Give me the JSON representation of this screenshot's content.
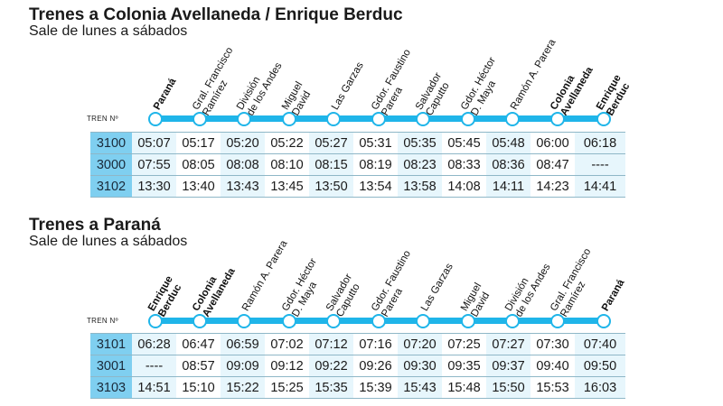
{
  "sections": [
    {
      "title": "Trenes a Colonia Avellaneda / Enrique Berduc",
      "subtitle": "Sale de lunes a sábados",
      "tren_label": "TREN Nº",
      "stations": [
        {
          "lines": [
            "Paraná"
          ],
          "bold": true
        },
        {
          "lines": [
            "Gral. Francisco",
            "Ramírez"
          ],
          "bold": false
        },
        {
          "lines": [
            "División",
            "de los Andes"
          ],
          "bold": false
        },
        {
          "lines": [
            "Miguel",
            "David"
          ],
          "bold": false
        },
        {
          "lines": [
            "Las Garzas"
          ],
          "bold": false
        },
        {
          "lines": [
            "Gdor. Faustino",
            "Parera"
          ],
          "bold": false
        },
        {
          "lines": [
            "Salvador",
            "Caputto"
          ],
          "bold": false
        },
        {
          "lines": [
            "Gdor. Héctor",
            "D. Maya"
          ],
          "bold": false
        },
        {
          "lines": [
            "Ramón A. Parera"
          ],
          "bold": false
        },
        {
          "lines": [
            "Colonia",
            "Avellaneda"
          ],
          "bold": true
        },
        {
          "lines": [
            "Enrique",
            "Berduc"
          ],
          "bold": true
        }
      ],
      "rows": [
        {
          "train": "3100",
          "times": [
            "05:07",
            "05:17",
            "05:20",
            "05:22",
            "05:27",
            "05:31",
            "05:35",
            "05:45",
            "05:48",
            "06:00",
            "06:18"
          ]
        },
        {
          "train": "3000",
          "times": [
            "07:55",
            "08:05",
            "08:08",
            "08:10",
            "08:15",
            "08:19",
            "08:23",
            "08:33",
            "08:36",
            "08:47",
            "----"
          ]
        },
        {
          "train": "3102",
          "times": [
            "13:30",
            "13:40",
            "13:43",
            "13:45",
            "13:50",
            "13:54",
            "13:58",
            "14:08",
            "14:11",
            "14:23",
            "14:41"
          ]
        }
      ]
    },
    {
      "title": "Trenes a Paraná",
      "subtitle": "Sale de lunes a sábados",
      "tren_label": "TREN Nº",
      "stations": [
        {
          "lines": [
            "Enrique",
            "Berduc"
          ],
          "bold": true
        },
        {
          "lines": [
            "Colonia",
            "Avellaneda"
          ],
          "bold": true
        },
        {
          "lines": [
            "Ramón A. Parera"
          ],
          "bold": false
        },
        {
          "lines": [
            "Gdor. Héctor",
            "D. Maya"
          ],
          "bold": false
        },
        {
          "lines": [
            "Salvador",
            "Caputto"
          ],
          "bold": false
        },
        {
          "lines": [
            "Gdor. Faustino",
            "Parera"
          ],
          "bold": false
        },
        {
          "lines": [
            "Las Garzas"
          ],
          "bold": false
        },
        {
          "lines": [
            "Miguel",
            "David"
          ],
          "bold": false
        },
        {
          "lines": [
            "División",
            "de los Andes"
          ],
          "bold": false
        },
        {
          "lines": [
            "Gral. Francisco",
            "Ramírez"
          ],
          "bold": false
        },
        {
          "lines": [
            "Paraná"
          ],
          "bold": true
        }
      ],
      "rows": [
        {
          "train": "3101",
          "times": [
            "06:28",
            "06:47",
            "06:59",
            "07:02",
            "07:12",
            "07:16",
            "07:20",
            "07:25",
            "07:27",
            "07:30",
            "07:40"
          ]
        },
        {
          "train": "3001",
          "times": [
            "----",
            "08:57",
            "09:09",
            "09:12",
            "09:22",
            "09:26",
            "09:30",
            "09:35",
            "09:37",
            "09:40",
            "09:50"
          ]
        },
        {
          "train": "3103",
          "times": [
            "14:51",
            "15:10",
            "15:22",
            "15:25",
            "15:35",
            "15:39",
            "15:43",
            "15:48",
            "15:50",
            "15:53",
            "16:03"
          ]
        }
      ]
    }
  ],
  "colors": {
    "line": "#1fb5e9",
    "train_cell": "#7fcff0",
    "alt_cell": "#e7f6fc"
  }
}
